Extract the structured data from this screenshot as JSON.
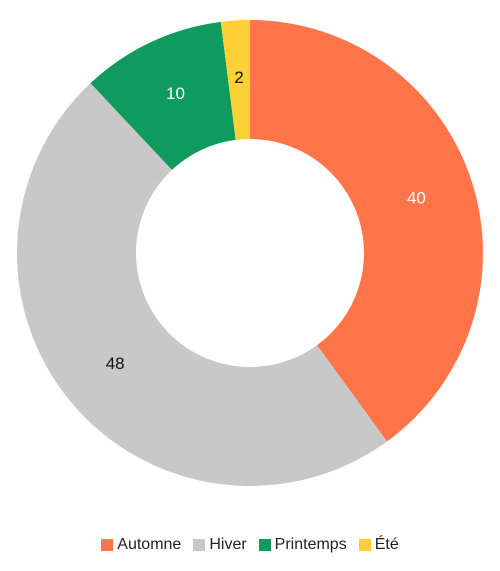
{
  "chart_data": {
    "type": "donut",
    "categories": [
      "Automne",
      "Hiver",
      "Printemps",
      "Été"
    ],
    "values": [
      40,
      48,
      10,
      2
    ],
    "colors": [
      "#ff7449",
      "#c8c8c8",
      "#0f9a5e",
      "#fdd136"
    ],
    "legend": "bottom"
  }
}
